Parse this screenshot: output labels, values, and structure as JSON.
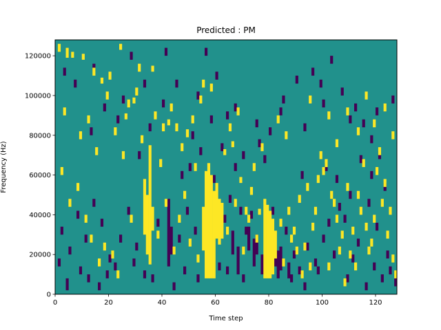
{
  "chart_data": {
    "type": "heatmap",
    "title": "Predicted : PM",
    "xlabel": "Time step",
    "ylabel": "Frequency (Hz)",
    "xlim": [
      0,
      128
    ],
    "ylim": [
      0,
      128000
    ],
    "x_ticks": [
      0,
      20,
      40,
      60,
      80,
      100,
      120
    ],
    "x_tick_labels": [
      "0",
      "20",
      "40",
      "60",
      "80",
      "100",
      "120"
    ],
    "y_ticks": [
      0,
      20000,
      40000,
      60000,
      80000,
      100000,
      120000
    ],
    "y_tick_labels": [
      "0",
      "20000",
      "40000",
      "60000",
      "80000",
      "100000",
      "120000"
    ],
    "grid": false,
    "colormap": "viridis",
    "colors": {
      "background": "#21918c",
      "high": "#fde725",
      "low": "#440154"
    },
    "n_time_steps": 128,
    "n_freq_bins": 128,
    "bin_hz": 1000,
    "cells_high": [
      [
        34,
        20000,
        50000
      ],
      [
        35,
        15000,
        75000
      ],
      [
        56,
        8000,
        62000
      ],
      [
        57,
        8000,
        66000
      ],
      [
        58,
        8000,
        60000
      ],
      [
        59,
        8000,
        52000
      ],
      [
        61,
        25000,
        48000
      ],
      [
        62,
        28000,
        46000
      ],
      [
        78,
        8000,
        48000
      ],
      [
        79,
        8000,
        45000
      ],
      [
        80,
        8000,
        42000
      ],
      [
        81,
        10000,
        38000
      ],
      [
        33,
        30000,
        58000
      ],
      [
        36,
        32000,
        44000
      ],
      [
        55,
        22000,
        44000
      ],
      [
        60,
        28000,
        56000
      ],
      [
        82,
        18000,
        32000
      ],
      [
        1,
        122000,
        126000
      ],
      [
        4,
        119000,
        124000
      ],
      [
        6,
        119000,
        122000
      ],
      [
        10,
        118000,
        121000
      ],
      [
        14,
        110000,
        114000
      ],
      [
        17,
        106000,
        109000
      ],
      [
        20,
        108000,
        112000
      ],
      [
        24,
        123000,
        126000
      ],
      [
        26,
        88000,
        91000
      ],
      [
        29,
        96000,
        99000
      ],
      [
        30,
        100000,
        104000
      ],
      [
        31,
        112000,
        116000
      ],
      [
        36,
        112000,
        115000
      ],
      [
        40,
        82000,
        86000
      ],
      [
        42,
        85000,
        88000
      ],
      [
        45,
        82000,
        86000
      ],
      [
        47,
        72000,
        76000
      ],
      [
        49,
        79000,
        83000
      ],
      [
        52,
        62000,
        66000
      ],
      [
        55,
        104000,
        108000
      ],
      [
        58,
        102000,
        106000
      ],
      [
        63,
        70000,
        73000
      ],
      [
        66,
        74000,
        77000
      ],
      [
        69,
        56000,
        59000
      ],
      [
        71,
        40000,
        44000
      ],
      [
        72,
        36000,
        40000
      ],
      [
        74,
        62000,
        66000
      ],
      [
        76,
        40000,
        43000
      ],
      [
        84,
        34000,
        38000
      ],
      [
        88,
        26000,
        30000
      ],
      [
        90,
        20000,
        24000
      ],
      [
        92,
        8000,
        12000
      ],
      [
        95,
        12000,
        16000
      ],
      [
        97,
        40000,
        44000
      ],
      [
        98,
        56000,
        60000
      ],
      [
        99,
        68000,
        72000
      ],
      [
        100,
        60000,
        64000
      ],
      [
        101,
        64000,
        68000
      ],
      [
        103,
        48000,
        52000
      ],
      [
        105,
        36000,
        40000
      ],
      [
        107,
        28000,
        32000
      ],
      [
        108,
        4000,
        8000
      ],
      [
        110,
        18000,
        22000
      ],
      [
        112,
        12000,
        16000
      ],
      [
        114,
        40000,
        44000
      ],
      [
        116,
        32000,
        36000
      ],
      [
        118,
        24000,
        28000
      ],
      [
        120,
        60000,
        64000
      ],
      [
        122,
        44000,
        48000
      ],
      [
        124,
        28000,
        32000
      ],
      [
        126,
        16000,
        20000
      ],
      [
        127,
        8000,
        12000
      ],
      [
        2,
        60000,
        64000
      ],
      [
        5,
        44000,
        48000
      ],
      [
        8,
        52000,
        56000
      ],
      [
        11,
        36000,
        40000
      ],
      [
        13,
        26000,
        30000
      ],
      [
        16,
        14000,
        18000
      ],
      [
        18,
        22000,
        26000
      ],
      [
        21,
        18000,
        22000
      ],
      [
        23,
        8000,
        12000
      ],
      [
        28,
        36000,
        40000
      ],
      [
        38,
        28000,
        32000
      ],
      [
        41,
        44000,
        48000
      ],
      [
        44,
        20000,
        24000
      ],
      [
        46,
        36000,
        40000
      ],
      [
        48,
        48000,
        52000
      ],
      [
        50,
        24000,
        28000
      ],
      [
        53,
        16000,
        20000
      ],
      [
        64,
        30000,
        34000
      ],
      [
        67,
        44000,
        48000
      ],
      [
        70,
        20000,
        24000
      ],
      [
        73,
        50000,
        54000
      ],
      [
        75,
        26000,
        30000
      ],
      [
        85,
        14000,
        18000
      ],
      [
        87,
        40000,
        44000
      ],
      [
        89,
        30000,
        34000
      ],
      [
        91,
        46000,
        50000
      ],
      [
        93,
        22000,
        26000
      ],
      [
        94,
        52000,
        56000
      ],
      [
        96,
        32000,
        36000
      ],
      [
        102,
        12000,
        16000
      ],
      [
        104,
        44000,
        48000
      ],
      [
        106,
        20000,
        24000
      ],
      [
        109,
        52000,
        56000
      ],
      [
        111,
        30000,
        34000
      ],
      [
        113,
        48000,
        52000
      ],
      [
        115,
        64000,
        68000
      ],
      [
        117,
        20000,
        24000
      ],
      [
        119,
        36000,
        40000
      ],
      [
        121,
        70000,
        74000
      ],
      [
        123,
        54000,
        58000
      ],
      [
        125,
        40000,
        44000
      ],
      [
        3,
        90000,
        94000
      ],
      [
        9,
        78000,
        82000
      ],
      [
        12,
        86000,
        90000
      ],
      [
        15,
        70000,
        74000
      ],
      [
        19,
        98000,
        102000
      ],
      [
        22,
        80000,
        84000
      ],
      [
        25,
        68000,
        72000
      ],
      [
        27,
        94000,
        98000
      ],
      [
        32,
        76000,
        80000
      ],
      [
        37,
        88000,
        92000
      ],
      [
        39,
        64000,
        68000
      ],
      [
        43,
        92000,
        96000
      ],
      [
        51,
        86000,
        90000
      ],
      [
        54,
        96000,
        100000
      ],
      [
        65,
        82000,
        86000
      ],
      [
        68,
        90000,
        94000
      ],
      [
        77,
        72000,
        76000
      ],
      [
        83,
        86000,
        90000
      ],
      [
        86,
        78000,
        82000
      ],
      [
        95,
        96000,
        100000
      ],
      [
        102,
        88000,
        92000
      ],
      [
        105,
        74000,
        78000
      ],
      [
        109,
        90000,
        94000
      ],
      [
        113,
        80000,
        84000
      ],
      [
        116,
        98000,
        102000
      ],
      [
        119,
        84000,
        88000
      ],
      [
        123,
        92000,
        96000
      ],
      [
        126,
        78000,
        82000
      ]
    ],
    "cells_low": [
      [
        42,
        14000,
        48000
      ],
      [
        43,
        20000,
        34000
      ],
      [
        57,
        32000,
        44000
      ],
      [
        66,
        20000,
        32000
      ],
      [
        68,
        10000,
        24000
      ],
      [
        72,
        22000,
        34000
      ],
      [
        74,
        14000,
        28000
      ],
      [
        75,
        20000,
        30000
      ],
      [
        77,
        10000,
        20000
      ],
      [
        83,
        8000,
        22000
      ],
      [
        84,
        12000,
        24000
      ],
      [
        87,
        8000,
        16000
      ],
      [
        3,
        110000,
        114000
      ],
      [
        7,
        104000,
        108000
      ],
      [
        14,
        112000,
        116000
      ],
      [
        25,
        96000,
        100000
      ],
      [
        28,
        118000,
        122000
      ],
      [
        33,
        104000,
        108000
      ],
      [
        41,
        120000,
        124000
      ],
      [
        45,
        104000,
        108000
      ],
      [
        53,
        98000,
        102000
      ],
      [
        56,
        120000,
        124000
      ],
      [
        60,
        108000,
        112000
      ],
      [
        64,
        88000,
        92000
      ],
      [
        67,
        62000,
        66000
      ],
      [
        70,
        68000,
        72000
      ],
      [
        76,
        74000,
        78000
      ],
      [
        80,
        80000,
        84000
      ],
      [
        85,
        96000,
        100000
      ],
      [
        90,
        106000,
        110000
      ],
      [
        96,
        110000,
        114000
      ],
      [
        99,
        104000,
        108000
      ],
      [
        103,
        116000,
        120000
      ],
      [
        107,
        100000,
        104000
      ],
      [
        112,
        92000,
        96000
      ],
      [
        115,
        84000,
        88000
      ],
      [
        118,
        76000,
        80000
      ],
      [
        121,
        68000,
        72000
      ],
      [
        2,
        30000,
        34000
      ],
      [
        5,
        20000,
        24000
      ],
      [
        8,
        38000,
        42000
      ],
      [
        11,
        26000,
        30000
      ],
      [
        14,
        44000,
        48000
      ],
      [
        17,
        34000,
        38000
      ],
      [
        20,
        16000,
        20000
      ],
      [
        24,
        26000,
        30000
      ],
      [
        27,
        40000,
        44000
      ],
      [
        30,
        22000,
        26000
      ],
      [
        38,
        34000,
        38000
      ],
      [
        46,
        26000,
        30000
      ],
      [
        49,
        40000,
        44000
      ],
      [
        52,
        30000,
        34000
      ],
      [
        63,
        36000,
        40000
      ],
      [
        65,
        46000,
        50000
      ],
      [
        69,
        40000,
        44000
      ],
      [
        71,
        30000,
        34000
      ],
      [
        73,
        38000,
        42000
      ],
      [
        79,
        28000,
        32000
      ],
      [
        81,
        40000,
        44000
      ],
      [
        86,
        30000,
        34000
      ],
      [
        89,
        18000,
        22000
      ],
      [
        91,
        10000,
        14000
      ],
      [
        94,
        22000,
        26000
      ],
      [
        97,
        14000,
        18000
      ],
      [
        100,
        26000,
        30000
      ],
      [
        102,
        34000,
        38000
      ],
      [
        104,
        18000,
        22000
      ],
      [
        106,
        42000,
        46000
      ],
      [
        108,
        36000,
        40000
      ],
      [
        110,
        48000,
        52000
      ],
      [
        113,
        24000,
        28000
      ],
      [
        117,
        44000,
        48000
      ],
      [
        120,
        32000,
        36000
      ],
      [
        124,
        18000,
        22000
      ],
      [
        127,
        4000,
        8000
      ],
      [
        1,
        14000,
        18000
      ],
      [
        4,
        2000,
        8000
      ],
      [
        9,
        10000,
        14000
      ],
      [
        12,
        6000,
        10000
      ],
      [
        16,
        2000,
        6000
      ],
      [
        19,
        8000,
        12000
      ],
      [
        22,
        12000,
        16000
      ],
      [
        29,
        14000,
        18000
      ],
      [
        33,
        8000,
        12000
      ],
      [
        36,
        6000,
        10000
      ],
      [
        44,
        2000,
        6000
      ],
      [
        48,
        10000,
        14000
      ],
      [
        53,
        6000,
        10000
      ],
      [
        61,
        12000,
        16000
      ],
      [
        64,
        10000,
        14000
      ],
      [
        70,
        6000,
        10000
      ],
      [
        82,
        14000,
        18000
      ],
      [
        88,
        6000,
        10000
      ],
      [
        93,
        2000,
        6000
      ],
      [
        98,
        10000,
        14000
      ],
      [
        109,
        6000,
        10000
      ],
      [
        111,
        16000,
        20000
      ],
      [
        116,
        2000,
        6000
      ],
      [
        119,
        12000,
        16000
      ],
      [
        122,
        6000,
        10000
      ],
      [
        125,
        10000,
        14000
      ],
      [
        31,
        68000,
        72000
      ],
      [
        47,
        58000,
        62000
      ],
      [
        50,
        62000,
        66000
      ],
      [
        54,
        70000,
        74000
      ],
      [
        59,
        56000,
        60000
      ],
      [
        62,
        72000,
        76000
      ],
      [
        78,
        66000,
        70000
      ],
      [
        92,
        58000,
        62000
      ],
      [
        101,
        62000,
        66000
      ],
      [
        105,
        56000,
        60000
      ],
      [
        114,
        66000,
        70000
      ],
      [
        118,
        58000,
        62000
      ],
      [
        123,
        52000,
        56000
      ],
      [
        13,
        80000,
        84000
      ],
      [
        18,
        92000,
        96000
      ],
      [
        23,
        86000,
        90000
      ],
      [
        35,
        82000,
        86000
      ],
      [
        40,
        94000,
        98000
      ],
      [
        51,
        78000,
        82000
      ],
      [
        58,
        86000,
        90000
      ],
      [
        67,
        92000,
        96000
      ],
      [
        75,
        84000,
        88000
      ],
      [
        84,
        90000,
        94000
      ],
      [
        93,
        82000,
        86000
      ],
      [
        100,
        94000,
        98000
      ],
      [
        110,
        86000,
        90000
      ],
      [
        120,
        90000,
        94000
      ],
      [
        126,
        96000,
        100000
      ]
    ]
  }
}
